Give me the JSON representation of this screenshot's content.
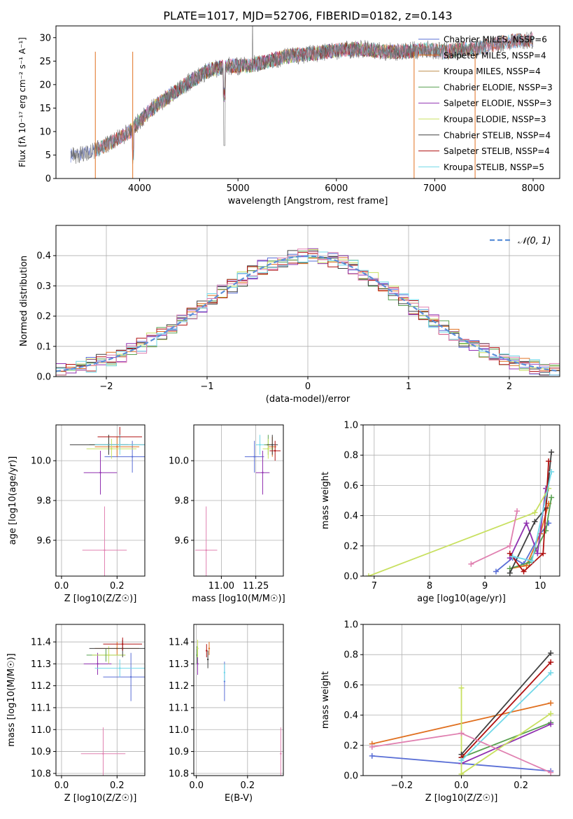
{
  "figure_title": "PLATE=1017, MJD=52706, FIBERID=0182, z=0.143",
  "series_colors": [
    "#5a6fd6",
    "#e07020",
    "#58a050",
    "#9030b0",
    "#c8e060",
    "#404040",
    "#b01010",
    "#70d8e8",
    "#e080b0"
  ],
  "chart_data": [
    {
      "id": "spectrum",
      "type": "line",
      "title": "PLATE=1017, MJD=52706, FIBERID=0182, z=0.143",
      "xlabel": "wavelength [Angstrom, rest frame]",
      "ylabel": "Flux [fλ 10⁻¹⁷ erg cm⁻² s⁻¹ A⁻¹]",
      "xlim": [
        3150,
        8270
      ],
      "ylim": [
        0,
        32.5
      ],
      "xticks": [
        "4000",
        "5000",
        "6000",
        "7000",
        "8000"
      ],
      "yticks": [
        "0",
        "5",
        "10",
        "15",
        "20",
        "25",
        "30"
      ],
      "grid": false,
      "legend_placement": "top-right",
      "legend": [
        "Chabrier MILES, NSSP=6",
        "Salpeter MILES, NSSP=4",
        "Kroupa MILES, NSSP=4",
        "Chabrier ELODIE, NSSP=3",
        "Salpeter ELODIE, NSSP=3",
        "Kroupa ELODIE, NSSP=3",
        "Chabrier STELIB, NSSP=4",
        "Salpeter STELIB, NSSP=4",
        "Kroupa STELIB, NSSP=5"
      ],
      "continuum": {
        "x": [
          3300,
          3500,
          3700,
          3900,
          4100,
          4300,
          4500,
          4700,
          4900,
          5100,
          5300,
          5500,
          5700,
          5900,
          6100,
          6300,
          6500,
          6700,
          6900,
          7100,
          7300,
          7500,
          7700,
          7900
        ],
        "y": [
          5.0,
          5.5,
          7.5,
          10.0,
          14.5,
          17.5,
          20.5,
          23.0,
          24.0,
          24.0,
          25.0,
          26.0,
          26.5,
          27.0,
          27.5,
          27.5,
          27.0,
          27.0,
          27.5,
          27.0,
          27.5,
          28.0,
          29.0,
          29.5
        ]
      }
    },
    {
      "id": "residual_hist",
      "type": "line",
      "xlabel": "(data-model)/error",
      "ylabel": "Normed distribution",
      "xlim": [
        -2.5,
        2.5
      ],
      "ylim": [
        0,
        0.5
      ],
      "xticks": [
        "−2",
        "−1",
        "0",
        "1",
        "2"
      ],
      "yticks": [
        "0.0",
        "0.1",
        "0.2",
        "0.3",
        "0.4"
      ],
      "grid": true,
      "legend_placement": "top-right",
      "legend": [
        "𝒩(0, 1)"
      ]
    },
    {
      "id": "age_vs_Z",
      "type": "scatter",
      "xlabel": "Z [log10(Z/Z☉)]",
      "ylabel": "age  [log10(age/yr)]",
      "xlim": [
        -0.02,
        0.3
      ],
      "ylim": [
        9.42,
        10.18
      ],
      "xticks": [
        "0.0",
        "0.2"
      ],
      "yticks": [
        "9.6",
        "9.8",
        "10.0"
      ],
      "grid": true,
      "points": [
        {
          "x": 0.255,
          "y": 10.02,
          "xerr": 0.1,
          "yerr": 0.08
        },
        {
          "x": 0.2,
          "y": 10.07,
          "xerr": 0.08,
          "yerr": 0.05
        },
        {
          "x": 0.17,
          "y": 10.08,
          "xerr": 0.07,
          "yerr": 0.05
        },
        {
          "x": 0.14,
          "y": 9.94,
          "xerr": 0.06,
          "yerr": 0.11
        },
        {
          "x": 0.18,
          "y": 10.06,
          "xerr": 0.09,
          "yerr": 0.05
        },
        {
          "x": 0.17,
          "y": 10.08,
          "xerr": 0.14,
          "yerr": 0.05
        },
        {
          "x": 0.21,
          "y": 10.12,
          "xerr": 0.08,
          "yerr": 0.05
        },
        {
          "x": 0.21,
          "y": 10.08,
          "xerr": 0.09,
          "yerr": 0.05
        },
        {
          "x": 0.155,
          "y": 9.55,
          "xerr": 0.08,
          "yerr": 0.22
        }
      ]
    },
    {
      "id": "age_vs_mass",
      "type": "scatter",
      "xlabel": "mass [log10(M/M☉)]",
      "ylabel": "",
      "xlim": [
        10.8,
        11.45
      ],
      "ylim": [
        9.42,
        10.18
      ],
      "xticks": [
        "11.00",
        "11.25"
      ],
      "yticks": [
        "9.6",
        "9.8",
        "10.0"
      ],
      "grid": true,
      "points": [
        {
          "x": 11.24,
          "y": 10.02,
          "xerr": 0.07,
          "yerr": 0.08
        },
        {
          "x": 11.37,
          "y": 10.07,
          "xerr": 0.03,
          "yerr": 0.05
        },
        {
          "x": 11.34,
          "y": 10.08,
          "xerr": 0.03,
          "yerr": 0.05
        },
        {
          "x": 11.3,
          "y": 9.94,
          "xerr": 0.05,
          "yerr": 0.11
        },
        {
          "x": 11.34,
          "y": 10.06,
          "xerr": 0.04,
          "yerr": 0.05
        },
        {
          "x": 11.37,
          "y": 10.08,
          "xerr": 0.04,
          "yerr": 0.05
        },
        {
          "x": 11.39,
          "y": 10.05,
          "xerr": 0.04,
          "yerr": 0.05
        },
        {
          "x": 11.28,
          "y": 10.08,
          "xerr": 0.03,
          "yerr": 0.05
        },
        {
          "x": 10.89,
          "y": 9.55,
          "xerr": 0.08,
          "yerr": 0.22
        }
      ]
    },
    {
      "id": "mass_weight_vs_age",
      "type": "line",
      "xlabel": "age  [log10(age/yr)]",
      "ylabel": "mass weight",
      "xlim": [
        6.8,
        10.35
      ],
      "ylim": [
        0,
        1.0
      ],
      "xticks": [
        "7",
        "8",
        "9",
        "10"
      ],
      "yticks": [
        "0.0",
        "0.2",
        "0.4",
        "0.6",
        "0.8",
        "1.0"
      ],
      "grid": true,
      "series": [
        {
          "x": [
            9.2,
            9.5,
            9.7,
            10.0,
            10.15
          ],
          "y": [
            0.03,
            0.12,
            0.08,
            0.28,
            0.35
          ]
        },
        {
          "x": [
            9.45,
            9.75,
            10.0,
            10.15
          ],
          "y": [
            0.05,
            0.07,
            0.28,
            0.48
          ]
        },
        {
          "x": [
            9.45,
            9.8,
            10.1,
            10.2
          ],
          "y": [
            0.05,
            0.09,
            0.3,
            0.52
          ]
        },
        {
          "x": [
            9.45,
            9.75,
            9.95,
            10.1
          ],
          "y": [
            0.12,
            0.35,
            0.15,
            0.58
          ]
        },
        {
          "x": [
            6.9,
            9.9,
            10.15
          ],
          "y": [
            0.0,
            0.42,
            0.58
          ]
        },
        {
          "x": [
            9.45,
            9.9,
            10.1,
            10.2
          ],
          "y": [
            0.02,
            0.36,
            0.45,
            0.82
          ]
        },
        {
          "x": [
            9.45,
            9.7,
            10.05,
            10.15
          ],
          "y": [
            0.15,
            0.03,
            0.15,
            0.76
          ]
        },
        {
          "x": [
            9.5,
            9.85,
            10.2
          ],
          "y": [
            0.13,
            0.1,
            0.69
          ]
        },
        {
          "x": [
            8.75,
            9.45,
            9.58
          ],
          "y": [
            0.08,
            0.2,
            0.43
          ]
        }
      ]
    },
    {
      "id": "mass_vs_Z",
      "type": "scatter",
      "xlabel": "Z [log10(Z/Z☉)]",
      "ylabel": "mass [log10(M/M☉)]",
      "xlim": [
        -0.02,
        0.3
      ],
      "ylim": [
        10.79,
        11.48
      ],
      "xticks": [
        "0.0",
        "0.2"
      ],
      "yticks": [
        "10.8",
        "10.9",
        "11.0",
        "11.1",
        "11.2",
        "11.3",
        "11.4"
      ],
      "grid": true,
      "points": [
        {
          "x": 0.25,
          "y": 11.24,
          "xerr": 0.1,
          "yerr": 0.11
        },
        {
          "x": 0.2,
          "y": 11.37,
          "xerr": 0.08,
          "yerr": 0.03
        },
        {
          "x": 0.16,
          "y": 11.34,
          "xerr": 0.07,
          "yerr": 0.03
        },
        {
          "x": 0.13,
          "y": 11.3,
          "xerr": 0.05,
          "yerr": 0.05
        },
        {
          "x": 0.17,
          "y": 11.34,
          "xerr": 0.06,
          "yerr": 0.04
        },
        {
          "x": 0.22,
          "y": 11.37,
          "xerr": 0.12,
          "yerr": 0.04
        },
        {
          "x": 0.22,
          "y": 11.39,
          "xerr": 0.07,
          "yerr": 0.03
        },
        {
          "x": 0.21,
          "y": 11.28,
          "xerr": 0.09,
          "yerr": 0.04
        },
        {
          "x": 0.15,
          "y": 10.89,
          "xerr": 0.08,
          "yerr": 0.12
        }
      ]
    },
    {
      "id": "mass_vs_ebv",
      "type": "scatter",
      "xlabel": "E(B-V)",
      "ylabel": "",
      "xlim": [
        -0.01,
        0.34
      ],
      "ylim": [
        10.79,
        11.48
      ],
      "xticks": [
        "0.0",
        "0.2"
      ],
      "yticks": [
        "10.8",
        "10.9",
        "11.0",
        "11.1",
        "11.2",
        "11.3",
        "11.4"
      ],
      "grid": true,
      "points": [
        {
          "x": 0.11,
          "y": 11.22,
          "xerr": 0.0,
          "yerr": 0.09
        },
        {
          "x": 0.05,
          "y": 11.37,
          "xerr": 0.0,
          "yerr": 0.03
        },
        {
          "x": 0.003,
          "y": 11.34,
          "xerr": 0.0,
          "yerr": 0.04
        },
        {
          "x": 0.005,
          "y": 11.3,
          "xerr": 0.0,
          "yerr": 0.05
        },
        {
          "x": 0.005,
          "y": 11.37,
          "xerr": 0.0,
          "yerr": 0.04
        },
        {
          "x": 0.045,
          "y": 11.32,
          "xerr": 0.0,
          "yerr": 0.04
        },
        {
          "x": 0.04,
          "y": 11.36,
          "xerr": 0.0,
          "yerr": 0.03
        },
        {
          "x": 0.11,
          "y": 11.26,
          "xerr": 0.0,
          "yerr": 0.04
        },
        {
          "x": 0.33,
          "y": 10.89,
          "xerr": 0.0,
          "yerr": 0.12
        }
      ]
    },
    {
      "id": "mass_weight_vs_Z",
      "type": "line",
      "xlabel": "Z [log10(Z/Z☉)]",
      "ylabel": "mass weight",
      "xlim": [
        -0.33,
        0.33
      ],
      "ylim": [
        0,
        1.0
      ],
      "xticks": [
        "−0.2",
        "0.0",
        "0.2"
      ],
      "yticks": [
        "0.0",
        "0.2",
        "0.4",
        "0.6",
        "0.8",
        "1.0"
      ],
      "grid": true,
      "series": [
        {
          "x": [
            -0.3,
            0.0,
            0.3
          ],
          "y": [
            0.13,
            0.08,
            0.03
          ]
        },
        {
          "x": [
            -0.3,
            0.3
          ],
          "y": [
            0.21,
            0.48
          ]
        },
        {
          "x": [
            0.0,
            0.3
          ],
          "y": [
            0.12,
            0.35
          ]
        },
        {
          "x": [
            0.0,
            0.3
          ],
          "y": [
            0.08,
            0.34
          ]
        },
        {
          "x": [
            0.0,
            0.0,
            0.3
          ],
          "y": [
            0.58,
            0.01,
            0.41
          ]
        },
        {
          "x": [
            0.0,
            0.3
          ],
          "y": [
            0.14,
            0.81
          ]
        },
        {
          "x": [
            0.0,
            0.3
          ],
          "y": [
            0.12,
            0.75
          ]
        },
        {
          "x": [
            0.0,
            0.3
          ],
          "y": [
            0.1,
            0.68
          ]
        },
        {
          "x": [
            -0.3,
            0.0,
            0.3
          ],
          "y": [
            0.19,
            0.28,
            0.02
          ]
        }
      ]
    }
  ]
}
